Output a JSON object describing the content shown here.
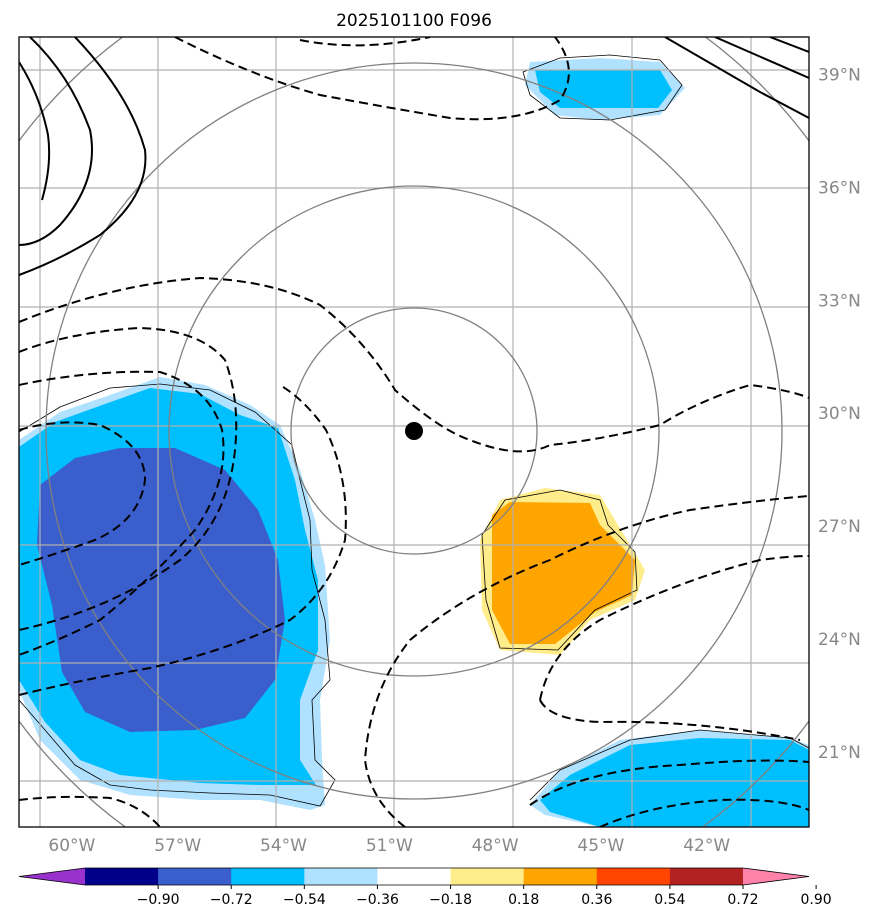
{
  "title": "2025101100 F096",
  "map": {
    "lon_range": [
      -61.5,
      -39.1
    ],
    "lat_range": [
      19.0,
      40.0
    ],
    "gridlines": true,
    "lon_ticks": [
      {
        "value": -60,
        "label": "60°W"
      },
      {
        "value": -57,
        "label": "57°W"
      },
      {
        "value": -54,
        "label": "54°W"
      },
      {
        "value": -51,
        "label": "51°W"
      },
      {
        "value": -48,
        "label": "48°W"
      },
      {
        "value": -45,
        "label": "45°W"
      },
      {
        "value": -42,
        "label": "42°W"
      }
    ],
    "lat_ticks": [
      {
        "value": 39,
        "label": "39°N"
      },
      {
        "value": 36,
        "label": "36°N"
      },
      {
        "value": 33,
        "label": "33°N"
      },
      {
        "value": 30,
        "label": "30°N"
      },
      {
        "value": 27,
        "label": "27°N"
      },
      {
        "value": 24,
        "label": "24°N"
      },
      {
        "value": 21,
        "label": "21°N"
      }
    ],
    "center_point": {
      "lon": -50.5,
      "lat": 29.8
    },
    "range_rings": "gray concentric circles around the center point",
    "contours": "black solid (positive) and dashed (negative) lines"
  },
  "colorbar": {
    "orientation": "horizontal",
    "extend": "both",
    "colors": [
      "#9932CC",
      "#00008B",
      "#3A5FCD",
      "#00BFFF",
      "#B0E2FF",
      "#FFFFFF",
      "#FFEC8B",
      "#FFA500",
      "#FF4500",
      "#B22222",
      "#FF82AB"
    ],
    "ticks": [
      "−0.90",
      "−0.72",
      "−0.54",
      "−0.36",
      "−0.18",
      "0.18",
      "0.36",
      "0.54",
      "0.72",
      "0.90"
    ]
  }
}
